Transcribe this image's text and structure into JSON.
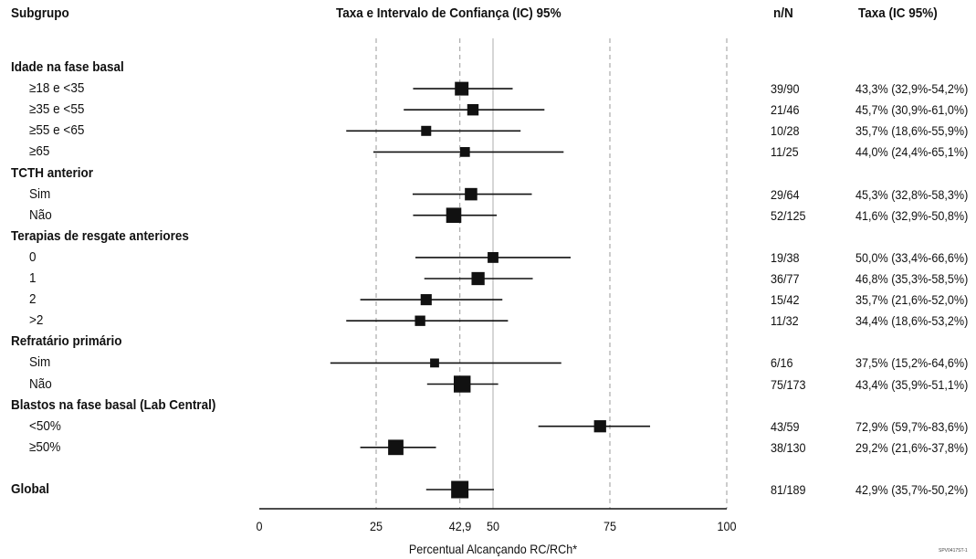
{
  "headers": {
    "subgroup": "Subgrupo",
    "chart": "Taxa e Intervalo de Confiança (IC) 95%",
    "nn": "n/N",
    "rate": "Taxa (IC 95%)"
  },
  "xlabel": "Percentual Alcançando RC/RCh*",
  "footnote": "SPV0417ST-1",
  "colors": {
    "marker": "#111111",
    "grid_dashed": "#aaaaaa",
    "grid_solid": "#bbbbbb"
  },
  "chart_data": {
    "type": "forest",
    "xlim": [
      0,
      100
    ],
    "xticks": [
      "0",
      "25",
      "42,9",
      "50",
      "75",
      "100"
    ],
    "reference_dashed": [
      25,
      42.9,
      75,
      100
    ],
    "reference_solid": [
      50
    ],
    "rows": [
      {
        "kind": "group",
        "label": "Idade na fase basal"
      },
      {
        "kind": "item",
        "label": "≥18 e <35",
        "nn": "39/90",
        "rate": "43,3% (32,9%-54,2%)",
        "est": 43.3,
        "lo": 32.9,
        "hi": 54.2,
        "n": 90
      },
      {
        "kind": "item",
        "label": "≥35 e <55",
        "nn": "21/46",
        "rate": "45,7% (30,9%-61,0%)",
        "est": 45.7,
        "lo": 30.9,
        "hi": 61.0,
        "n": 46
      },
      {
        "kind": "item",
        "label": "≥55 e <65",
        "nn": "10/28",
        "rate": "35,7% (18,6%-55,9%)",
        "est": 35.7,
        "lo": 18.6,
        "hi": 55.9,
        "n": 28
      },
      {
        "kind": "item",
        "label": "≥65",
        "nn": "11/25",
        "rate": "44,0% (24,4%-65,1%)",
        "est": 44.0,
        "lo": 24.4,
        "hi": 65.1,
        "n": 25
      },
      {
        "kind": "group",
        "label": "TCTH anterior"
      },
      {
        "kind": "item",
        "label": "Sim",
        "nn": "29/64",
        "rate": "45,3% (32,8%-58,3%)",
        "est": 45.3,
        "lo": 32.8,
        "hi": 58.3,
        "n": 64
      },
      {
        "kind": "item",
        "label": "Não",
        "nn": "52/125",
        "rate": "41,6% (32,9%-50,8%)",
        "est": 41.6,
        "lo": 32.9,
        "hi": 50.8,
        "n": 125
      },
      {
        "kind": "group",
        "label": "Terapias de resgate anteriores"
      },
      {
        "kind": "item",
        "label": "0",
        "nn": "19/38",
        "rate": "50,0% (33,4%-66,6%)",
        "est": 50.0,
        "lo": 33.4,
        "hi": 66.6,
        "n": 38
      },
      {
        "kind": "item",
        "label": "1",
        "nn": "36/77",
        "rate": "46,8% (35,3%-58,5%)",
        "est": 46.8,
        "lo": 35.3,
        "hi": 58.5,
        "n": 77
      },
      {
        "kind": "item",
        "label": "2",
        "nn": "15/42",
        "rate": "35,7% (21,6%-52,0%)",
        "est": 35.7,
        "lo": 21.6,
        "hi": 52.0,
        "n": 42
      },
      {
        "kind": "item",
        "label": ">2",
        "nn": "11/32",
        "rate": "34,4% (18,6%-53,2%)",
        "est": 34.4,
        "lo": 18.6,
        "hi": 53.2,
        "n": 32
      },
      {
        "kind": "group",
        "label": "Refratário primário"
      },
      {
        "kind": "item",
        "label": "Sim",
        "nn": "6/16",
        "rate": "37,5% (15,2%-64,6%)",
        "est": 37.5,
        "lo": 15.2,
        "hi": 64.6,
        "n": 16
      },
      {
        "kind": "item",
        "label": "Não",
        "nn": "75/173",
        "rate": "43,4% (35,9%-51,1%)",
        "est": 43.4,
        "lo": 35.9,
        "hi": 51.1,
        "n": 173
      },
      {
        "kind": "group",
        "label": "Blastos na fase basal (Lab Central)"
      },
      {
        "kind": "item",
        "label": "<50%",
        "nn": "43/59",
        "rate": "72,9% (59,7%-83,6%)",
        "est": 72.9,
        "lo": 59.7,
        "hi": 83.6,
        "n": 59
      },
      {
        "kind": "item",
        "label": "≥50%",
        "nn": "38/130",
        "rate": "29,2% (21,6%-37,8%)",
        "est": 29.2,
        "lo": 21.6,
        "hi": 37.8,
        "n": 130
      },
      {
        "kind": "spacer"
      },
      {
        "kind": "overall",
        "label": "Global",
        "nn": "81/189",
        "rate": "42,9% (35,7%-50,2%)",
        "est": 42.9,
        "lo": 35.7,
        "hi": 50.2,
        "n": 189
      }
    ]
  }
}
